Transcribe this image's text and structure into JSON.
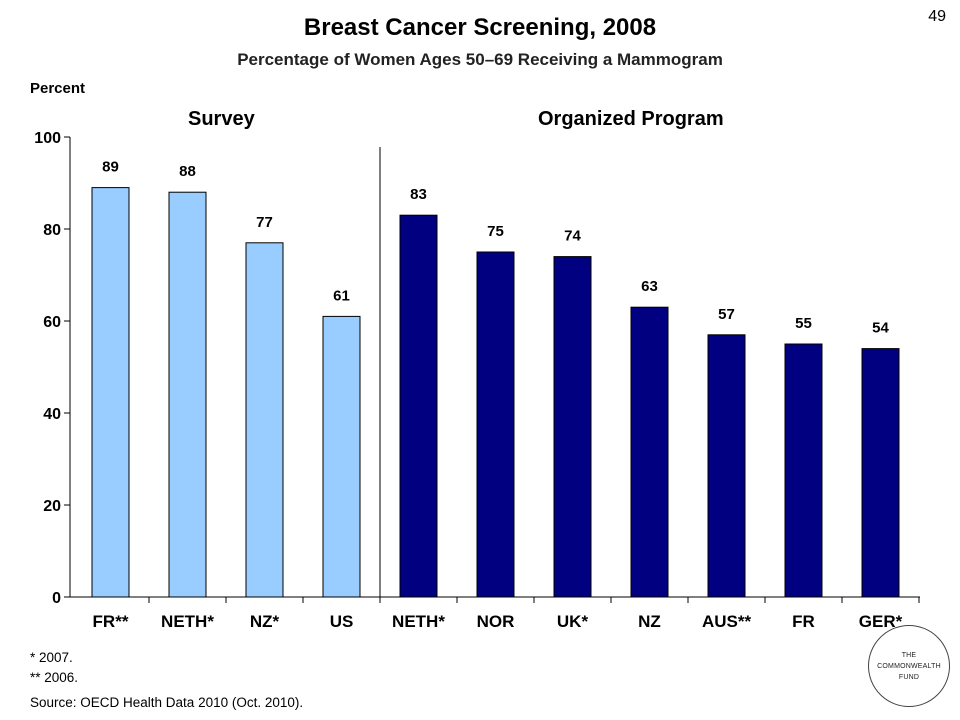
{
  "page": {
    "title": "Breast Cancer Screening, 2008",
    "subtitle": "Percentage of Women Ages 50–69 Receiving a Mammogram",
    "page_number": "49"
  },
  "chart_data": {
    "type": "bar",
    "ylabel": "Percent",
    "ylim": [
      0,
      100
    ],
    "yticks": [
      0,
      20,
      40,
      60,
      80,
      100
    ],
    "grid": false,
    "groups": [
      {
        "name": "Survey",
        "color": "#99CCFF",
        "categories": [
          "FR**",
          "NETH*",
          "NZ*",
          "US"
        ],
        "values": [
          89,
          88,
          77,
          61
        ]
      },
      {
        "name": "Organized Program",
        "color": "#000080",
        "categories": [
          "NETH*",
          "NOR",
          "UK*",
          "NZ",
          "AUS**",
          "FR",
          "GER*"
        ],
        "values": [
          83,
          75,
          74,
          63,
          57,
          55,
          54
        ]
      }
    ]
  },
  "footnotes": {
    "note1": "* 2007.",
    "note2": "** 2006.",
    "source": "Source: OECD Health Data 2010 (Oct. 2010)."
  },
  "logo": {
    "line1": "THE",
    "line2": "COMMONWEALTH",
    "line3": "FUND"
  }
}
